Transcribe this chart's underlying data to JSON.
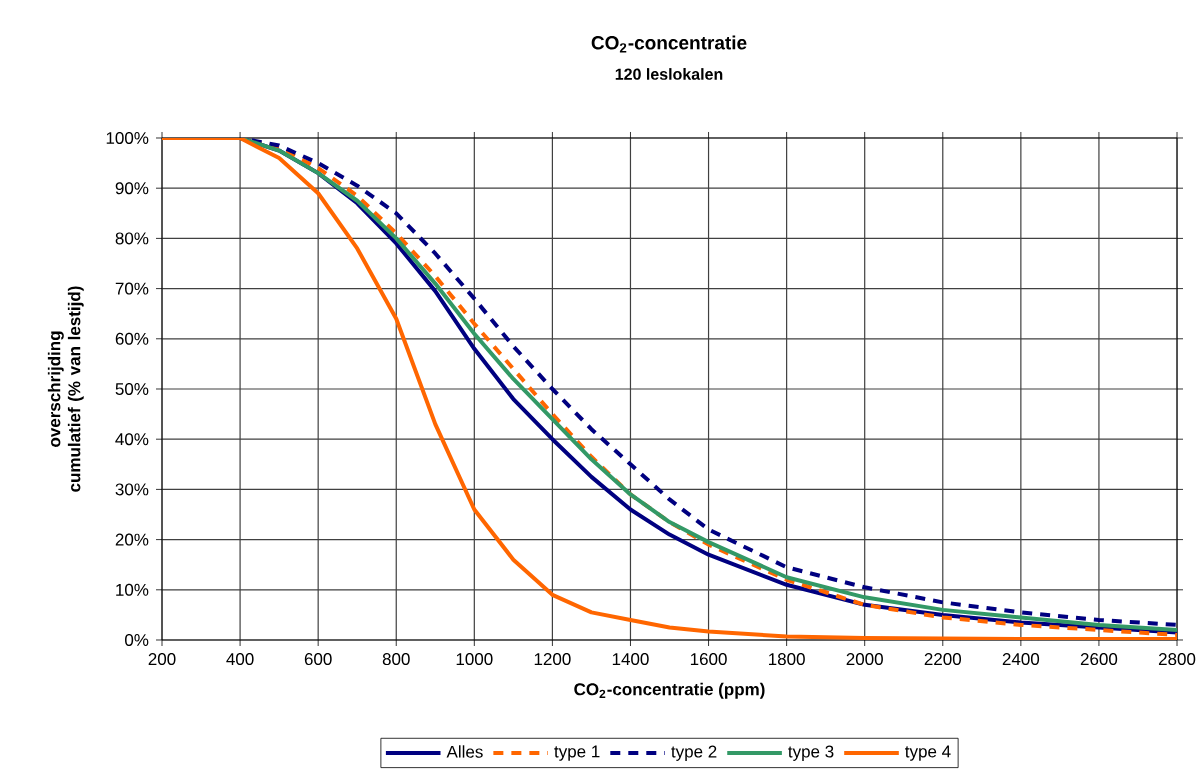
{
  "chart_data": {
    "type": "line",
    "title": "CO$_{2}$-concentratie",
    "subtitle": "120 leslokalen",
    "xlabel": "CO$_{2}$-concentratie (ppm)",
    "ylabel": "overschrijding cumulatief (% van lestijd)",
    "x": [
      200,
      300,
      400,
      500,
      600,
      700,
      800,
      900,
      1000,
      1100,
      1200,
      1300,
      1400,
      1500,
      1600,
      1800,
      2000,
      2200,
      2400,
      2600,
      2800
    ],
    "series": [
      {
        "name": "Alles",
        "color": "#000080",
        "line_style": "solid",
        "values": [
          100,
          100,
          100,
          97.5,
          93,
          87,
          79,
          69.5,
          58,
          48,
          40,
          32.5,
          26,
          21,
          17,
          11,
          7,
          5,
          3.5,
          2.5,
          1.5
        ]
      },
      {
        "name": "type 1",
        "color": "#ff6600",
        "line_style": "dashed",
        "values": [
          100,
          100,
          100,
          98,
          94,
          88.5,
          81,
          72.5,
          63,
          54,
          45,
          36.5,
          29,
          23.5,
          19,
          12,
          7,
          4.5,
          3,
          2,
          1
        ]
      },
      {
        "name": "type 2",
        "color": "#000080",
        "line_style": "dashed",
        "values": [
          100,
          100,
          100,
          98.5,
          95,
          90.5,
          85,
          77,
          68,
          58.5,
          50,
          42,
          35,
          28,
          22,
          14.5,
          10.5,
          7.5,
          5.5,
          4,
          3
        ]
      },
      {
        "name": "type 3",
        "color": "#339966",
        "line_style": "solid",
        "values": [
          100,
          100,
          100,
          97.5,
          93,
          87.5,
          80,
          71,
          61,
          52,
          44,
          36,
          29,
          23.5,
          19.5,
          12.5,
          8.5,
          6,
          4.5,
          3,
          2
        ]
      },
      {
        "name": "type 4",
        "color": "#ff6600",
        "line_style": "solid",
        "values": [
          100,
          100,
          100,
          96,
          89,
          78,
          64,
          43,
          26,
          16,
          9,
          5.5,
          4,
          2.5,
          1.7,
          0.7,
          0.4,
          0.3,
          0.2,
          0.2,
          0.2
        ]
      }
    ],
    "xlim": [
      200,
      2800
    ],
    "xticks": [
      200,
      400,
      600,
      800,
      1000,
      1200,
      1400,
      1600,
      1800,
      2000,
      2200,
      2400,
      2600,
      2800
    ],
    "ylim": [
      0,
      100
    ],
    "yticks": [
      {
        "value": 0,
        "label": "0%"
      },
      {
        "value": 10,
        "label": "10%"
      },
      {
        "value": 20,
        "label": "20%"
      },
      {
        "value": 30,
        "label": "30%"
      },
      {
        "value": 40,
        "label": "40%"
      },
      {
        "value": 50,
        "label": "50%"
      },
      {
        "value": 60,
        "label": "60%"
      },
      {
        "value": 70,
        "label": "70%"
      },
      {
        "value": 80,
        "label": "80%"
      },
      {
        "value": 90,
        "label": "90%"
      },
      {
        "value": 100,
        "label": "100%"
      }
    ],
    "grid": true,
    "legend": "bottom"
  }
}
